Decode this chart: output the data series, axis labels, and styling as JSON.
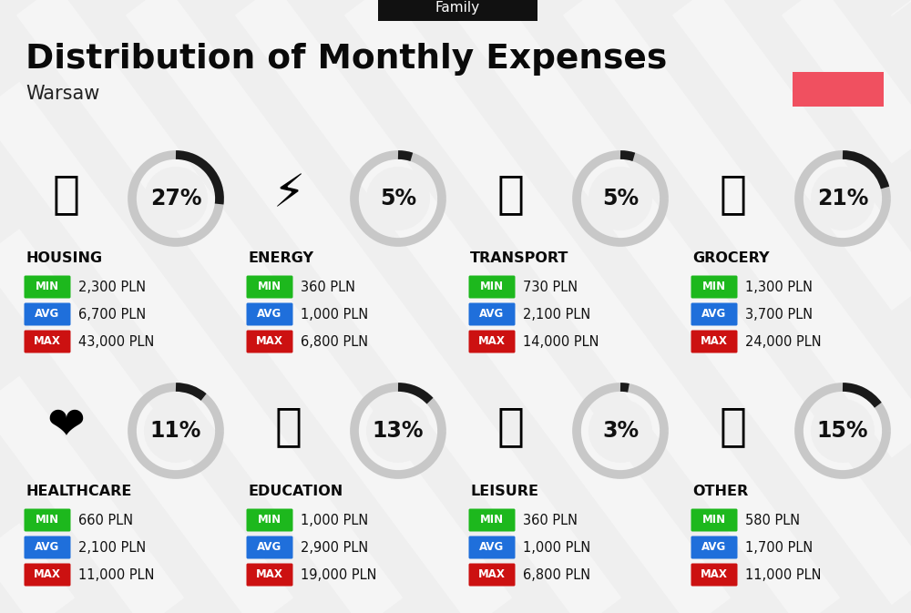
{
  "title": "Distribution of Monthly Expenses",
  "subtitle": "Warsaw",
  "family_label": "Family",
  "bg_color": "#efefef",
  "header_bg": "#111111",
  "header_text": "#ffffff",
  "red_rect_color": "#f05060",
  "categories": [
    {
      "name": "HOUSING",
      "pct": 27,
      "min": "2,300 PLN",
      "avg": "6,700 PLN",
      "max": "43,000 PLN",
      "icon": "🏙",
      "row": 0,
      "col": 0
    },
    {
      "name": "ENERGY",
      "pct": 5,
      "min": "360 PLN",
      "avg": "1,000 PLN",
      "max": "6,800 PLN",
      "icon": "⚡",
      "row": 0,
      "col": 1
    },
    {
      "name": "TRANSPORT",
      "pct": 5,
      "min": "730 PLN",
      "avg": "2,100 PLN",
      "max": "14,000 PLN",
      "icon": "🚌",
      "row": 0,
      "col": 2
    },
    {
      "name": "GROCERY",
      "pct": 21,
      "min": "1,300 PLN",
      "avg": "3,700 PLN",
      "max": "24,000 PLN",
      "icon": "🛒",
      "row": 0,
      "col": 3
    },
    {
      "name": "HEALTHCARE",
      "pct": 11,
      "min": "660 PLN",
      "avg": "2,100 PLN",
      "max": "11,000 PLN",
      "icon": "❤️",
      "row": 1,
      "col": 0
    },
    {
      "name": "EDUCATION",
      "pct": 13,
      "min": "1,000 PLN",
      "avg": "2,900 PLN",
      "max": "19,000 PLN",
      "icon": "🎓",
      "row": 1,
      "col": 1
    },
    {
      "name": "LEISURE",
      "pct": 3,
      "min": "360 PLN",
      "avg": "1,000 PLN",
      "max": "6,800 PLN",
      "icon": "🛍",
      "row": 1,
      "col": 2
    },
    {
      "name": "OTHER",
      "pct": 15,
      "min": "580 PLN",
      "avg": "1,700 PLN",
      "max": "11,000 PLN",
      "icon": "👛",
      "row": 1,
      "col": 3
    }
  ],
  "min_color": "#1db81d",
  "avg_color": "#1f6fdb",
  "max_color": "#cc1111",
  "value_text_color": "#111111",
  "arc_dark_color": "#1a1a1a",
  "arc_light_color": "#c8c8c8",
  "stripe_color": "#e8e8e8"
}
